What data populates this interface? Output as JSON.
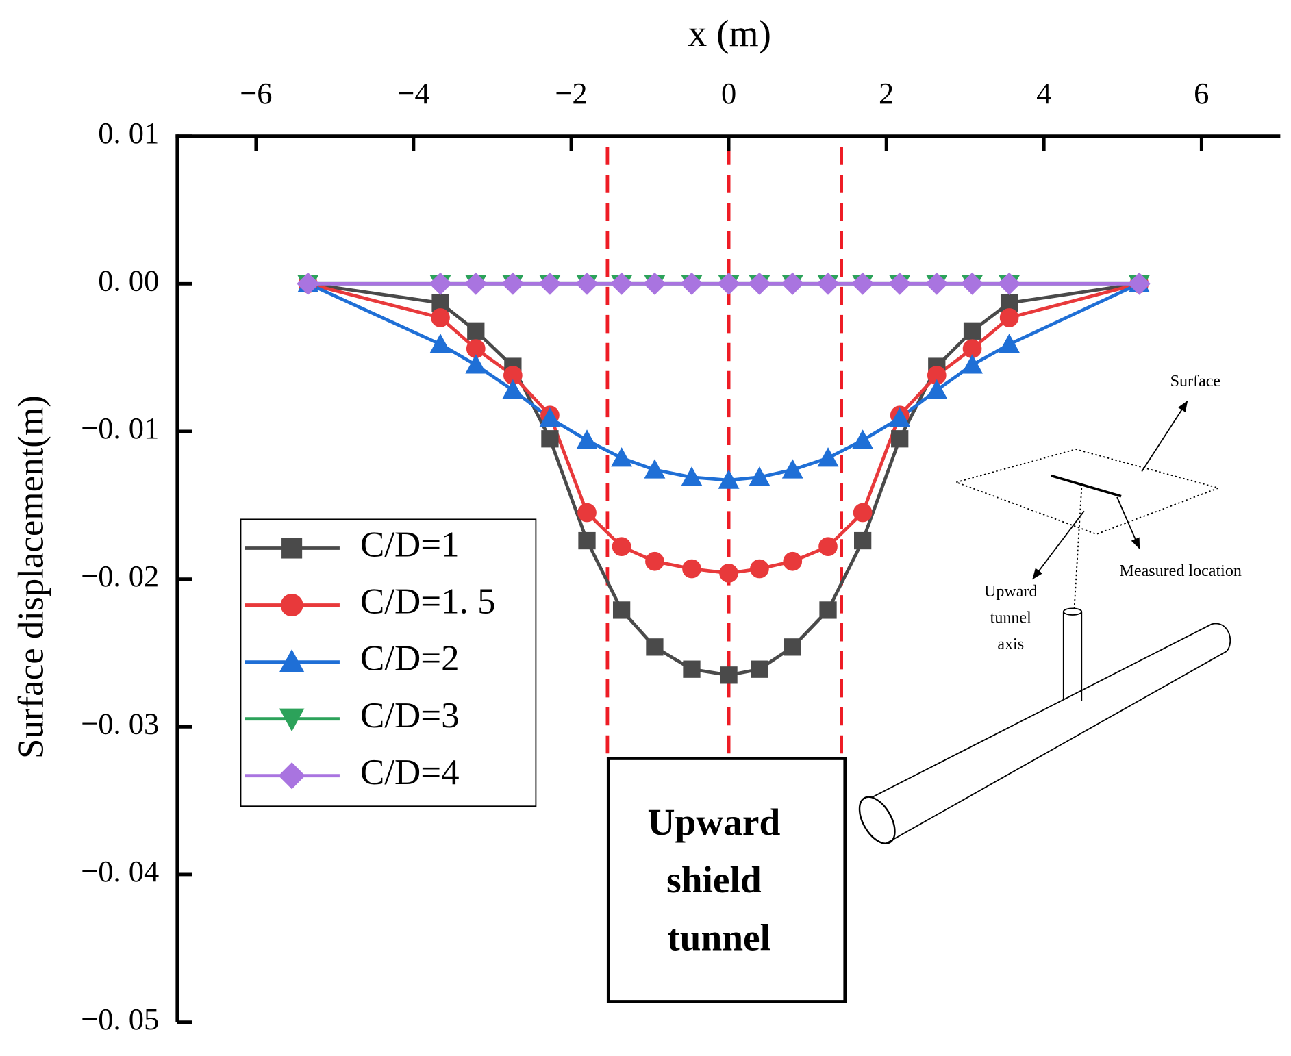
{
  "chart_data": {
    "type": "line",
    "title": "x (m)",
    "y_label": "Surface displacement(m)",
    "x_axis_position": "top",
    "x": [
      -5.34,
      -3.66,
      -3.21,
      -2.74,
      -2.27,
      -1.8,
      -1.36,
      -0.94,
      -0.47,
      0,
      0.39,
      0.81,
      1.26,
      1.7,
      2.17,
      2.64,
      3.09,
      3.56,
      5.21
    ],
    "series": [
      {
        "name": "C/D=1",
        "color": "#4a4a4a",
        "marker": "square",
        "values": [
          0,
          -0.0013,
          -0.0032,
          -0.0056,
          -0.0105,
          -0.0174,
          -0.0221,
          -0.0246,
          -0.0261,
          -0.0265,
          -0.0261,
          -0.0246,
          -0.0221,
          -0.0174,
          -0.0105,
          -0.0056,
          -0.0032,
          -0.0013,
          0
        ]
      },
      {
        "name": "C/D=1. 5",
        "color": "#e8393b",
        "marker": "circle",
        "values": [
          0,
          -0.0023,
          -0.0044,
          -0.0062,
          -0.0089,
          -0.0155,
          -0.0178,
          -0.0188,
          -0.0193,
          -0.0196,
          -0.0193,
          -0.0188,
          -0.0178,
          -0.0155,
          -0.0089,
          -0.0062,
          -0.0044,
          -0.0023,
          0
        ]
      },
      {
        "name": "C/D=2",
        "color": "#1f6fd6",
        "marker": "triangle-up",
        "values": [
          0,
          -0.0041,
          -0.0055,
          -0.0072,
          -0.0091,
          -0.0106,
          -0.0118,
          -0.0126,
          -0.0131,
          -0.0133,
          -0.0131,
          -0.0126,
          -0.0118,
          -0.0106,
          -0.0091,
          -0.0072,
          -0.0055,
          -0.0041,
          0
        ]
      },
      {
        "name": "C/D=3",
        "color": "#2ca25a",
        "marker": "triangle-down",
        "values": [
          0,
          0,
          0,
          0,
          0,
          0,
          0,
          0,
          0,
          0,
          0,
          0,
          0,
          0,
          0,
          0,
          0,
          0,
          0
        ]
      },
      {
        "name": "C/D=4",
        "color": "#a974e0",
        "marker": "diamond",
        "values": [
          0,
          0,
          0,
          0,
          0,
          0,
          0,
          0,
          0,
          0,
          0,
          0,
          0,
          0,
          0,
          0,
          0,
          0,
          0
        ]
      }
    ],
    "xlim": [
      -7,
      7
    ],
    "xticks": [
      {
        "value": -6,
        "label": "−6"
      },
      {
        "value": -4,
        "label": "−4"
      },
      {
        "value": -2,
        "label": "−2"
      },
      0,
      2,
      4,
      6
    ],
    "ylim": [
      -0.05,
      0.01
    ],
    "yticks": [
      {
        "value": -0.05,
        "label": "−0. 05"
      },
      {
        "value": -0.04,
        "label": "−0. 04"
      },
      {
        "value": -0.03,
        "label": "−0. 03"
      },
      {
        "value": -0.02,
        "label": "−0. 02"
      },
      {
        "value": -0.01,
        "label": "−0. 01"
      },
      {
        "value": 0,
        "label": "0. 00"
      },
      {
        "value": 0.01,
        "label": "0. 01"
      }
    ],
    "legend": "left",
    "reference_lines": {
      "x": [
        -1.54,
        0,
        1.43
      ],
      "color": "#ee1c25"
    },
    "annotation": [
      "Upward",
      "shield",
      "tunnel"
    ]
  },
  "inset": {
    "surface": "Surface",
    "measured": "Measured location",
    "axis": [
      "Upward",
      "tunnel",
      "axis"
    ]
  }
}
